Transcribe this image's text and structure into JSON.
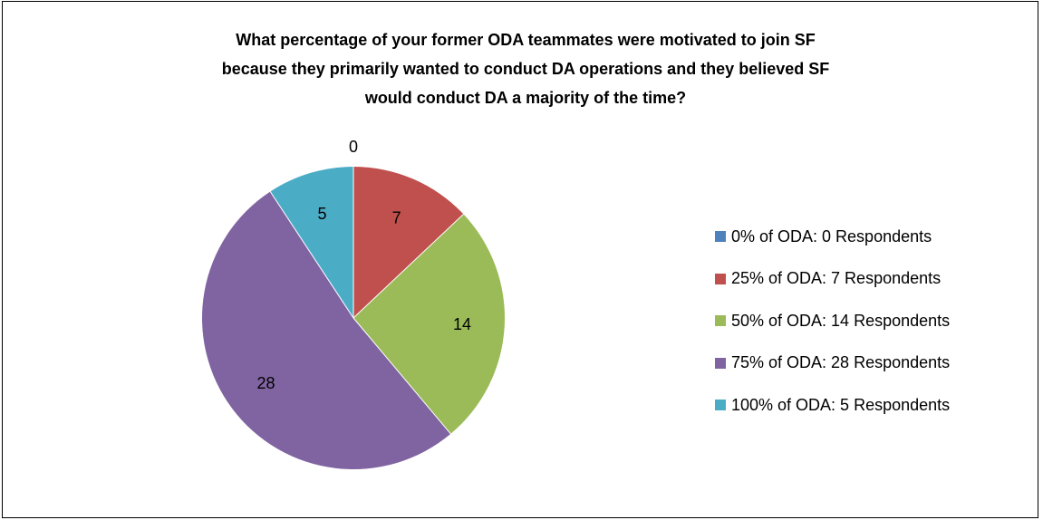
{
  "chart_data": {
    "type": "pie",
    "title_lines": [
      "What percentage of your former ODA teammates were motivated to join SF",
      "because they primarily wanted to conduct DA operations and they believed SF",
      "would conduct DA a majority of the time?"
    ],
    "slices": [
      {
        "label": "0% of ODA: 0 Respondents",
        "value": 0,
        "data_label": "0",
        "color": "#4F81BD"
      },
      {
        "label": "25% of ODA: 7 Respondents",
        "value": 7,
        "data_label": "7",
        "color": "#C0504D"
      },
      {
        "label": "50% of ODA: 14 Respondents",
        "value": 14,
        "data_label": "14",
        "color": "#9BBB59"
      },
      {
        "label": "75% of ODA: 28 Respondents",
        "value": 28,
        "data_label": "28",
        "color": "#8064A2"
      },
      {
        "label": "100% of ODA: 5 Respondents",
        "value": 5,
        "data_label": "5",
        "color": "#4BACC6"
      }
    ],
    "legend_position": "right"
  }
}
